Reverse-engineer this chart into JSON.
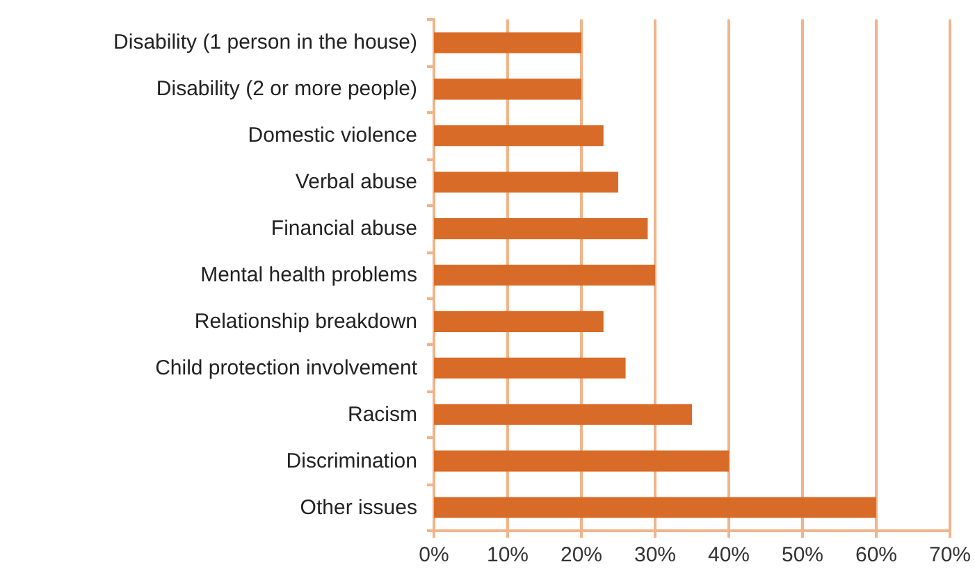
{
  "chart_data": {
    "type": "bar",
    "orientation": "horizontal",
    "categories": [
      "Disability (1 person in the house)",
      "Disability (2 or more people)",
      "Domestic violence",
      "Verbal abuse",
      "Financial abuse",
      "Mental health problems",
      "Relationship breakdown",
      "Child protection involvement",
      "Racism",
      "Discrimination",
      "Other issues"
    ],
    "values": [
      20,
      20,
      23,
      25,
      29,
      30,
      23,
      26,
      35,
      40,
      60
    ],
    "color": "#d86b27",
    "xlim": [
      0,
      70
    ],
    "xticks": [
      {
        "value": 0,
        "label": "0%"
      },
      {
        "value": 10,
        "label": "10%"
      },
      {
        "value": 20,
        "label": "20%"
      },
      {
        "value": 30,
        "label": "30%"
      },
      {
        "value": 40,
        "label": "40%"
      },
      {
        "value": 50,
        "label": "50%"
      },
      {
        "value": 60,
        "label": "60%"
      },
      {
        "value": 70,
        "label": "70%"
      }
    ],
    "grid": "x"
  }
}
